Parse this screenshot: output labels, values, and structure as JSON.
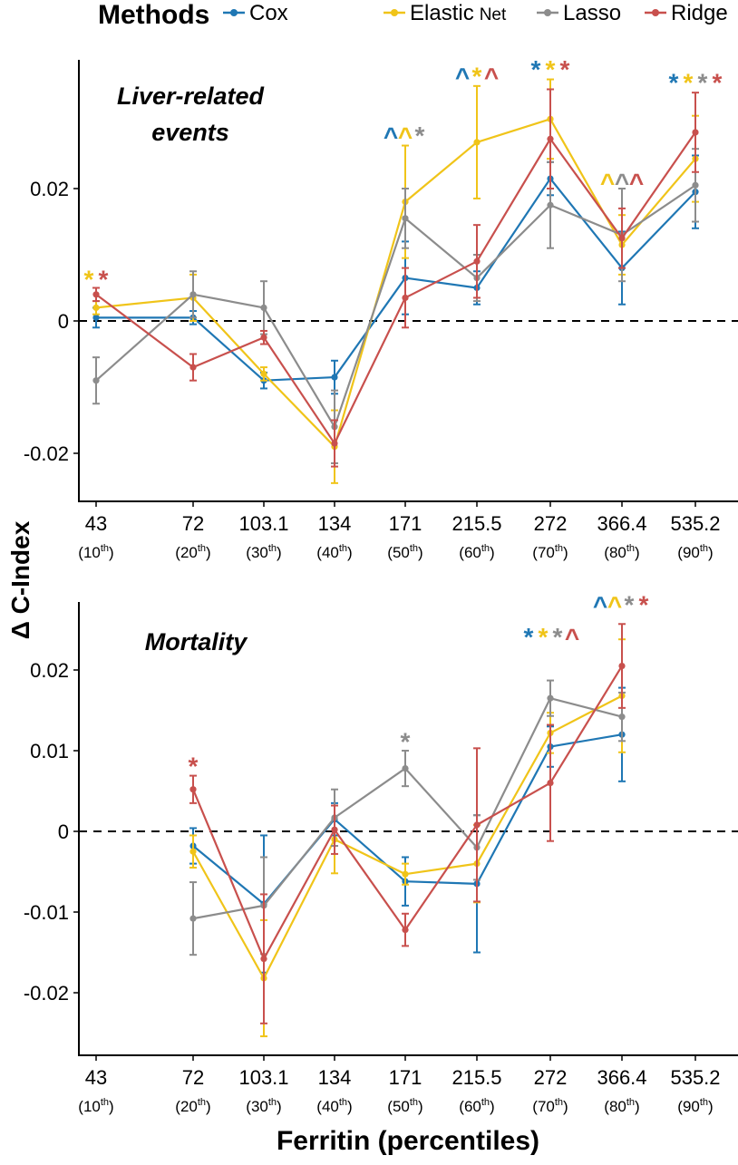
{
  "legend": {
    "title": "Methods",
    "items": [
      {
        "label": "Cox",
        "color": "#1f77b4"
      },
      {
        "label": "Elastic",
        "label2": "Net",
        "color": "#f0c419"
      },
      {
        "label": "Lasso",
        "color": "#8c8c8c"
      },
      {
        "label": "Ridge",
        "color": "#c8504d"
      }
    ]
  },
  "shared": {
    "ylabel": "Δ C-Index",
    "xlabel": "Ferritin (percentiles)"
  },
  "colors": {
    "Cox": "#1f77b4",
    "Elastic Net": "#f0c419",
    "Lasso": "#8c8c8c",
    "Ridge": "#c8504d"
  },
  "chart_data": [
    {
      "type": "line",
      "title": "Liver-related events",
      "title_lines": [
        "Liver-related",
        "events"
      ],
      "x_values": [
        "43",
        "72",
        "103.1",
        "134",
        "171",
        "215.5",
        "272",
        "366.4",
        "535.2"
      ],
      "x_percentiles": [
        "10",
        "20",
        "30",
        "40",
        "50",
        "60",
        "70",
        "80",
        "90"
      ],
      "yticks": [
        {
          "value": -0.02,
          "label": "-0.02"
        },
        {
          "value": 0,
          "label": "0"
        },
        {
          "value": 0.02,
          "label": "0.02"
        }
      ],
      "ylim": [
        -0.028,
        0.039
      ],
      "reference_line": 0,
      "series": [
        {
          "name": "Cox",
          "values": [
            0.0005,
            0.0005,
            -0.009,
            -0.0085,
            0.0065,
            0.005,
            0.0215,
            0.008,
            0.0195
          ],
          "err": [
            0.0015,
            0.001,
            0.0012,
            0.0025,
            0.0055,
            0.0025,
            0.0025,
            0.0055,
            0.0055
          ]
        },
        {
          "name": "Elastic Net",
          "values": [
            0.002,
            0.0035,
            -0.008,
            -0.019,
            0.018,
            0.027,
            0.0305,
            0.0115,
            0.0245
          ],
          "err": [
            0.001,
            0.0035,
            0.001,
            0.0055,
            0.0085,
            0.0085,
            0.006,
            0.0045,
            0.0065
          ]
        },
        {
          "name": "Lasso",
          "values": [
            -0.009,
            0.004,
            0.002,
            -0.016,
            0.0155,
            0.0065,
            0.0175,
            0.013,
            0.0205
          ],
          "err": [
            0.0035,
            0.0035,
            0.004,
            0.0055,
            0.0045,
            0.0035,
            0.0065,
            0.007,
            0.0055
          ]
        },
        {
          "name": "Ridge",
          "values": [
            0.004,
            -0.007,
            -0.0025,
            -0.0185,
            0.0035,
            0.009,
            0.0275,
            0.0125,
            0.0285
          ],
          "err": [
            0.001,
            0.002,
            0.001,
            0.0035,
            0.0045,
            0.0055,
            0.0075,
            0.0045,
            0.006
          ]
        }
      ],
      "annotations": [
        {
          "x_index": 0,
          "y": 0.0068,
          "marks": [
            {
              "sym": "*",
              "series": "Elastic Net"
            },
            {
              "sym": "*",
              "series": "Ridge"
            }
          ]
        },
        {
          "x_index": 4,
          "y": 0.0285,
          "marks": [
            {
              "sym": "^",
              "series": "Cox"
            },
            {
              "sym": "^",
              "series": "Elastic Net"
            },
            {
              "sym": "*",
              "series": "Lasso"
            }
          ]
        },
        {
          "x_index": 5,
          "y": 0.0375,
          "marks": [
            {
              "sym": "^",
              "series": "Cox"
            },
            {
              "sym": "*",
              "series": "Elastic Net"
            },
            {
              "sym": "^",
              "series": "Ridge"
            }
          ]
        },
        {
          "x_index": 6,
          "y": 0.0385,
          "marks": [
            {
              "sym": "*",
              "series": "Cox"
            },
            {
              "sym": "*",
              "series": "Elastic Net"
            },
            {
              "sym": "*",
              "series": "Ridge"
            }
          ]
        },
        {
          "x_index": 7,
          "y": 0.0215,
          "marks": [
            {
              "sym": "^",
              "series": "Elastic Net"
            },
            {
              "sym": "^",
              "series": "Lasso"
            },
            {
              "sym": "^",
              "series": "Ridge"
            }
          ]
        },
        {
          "x_index": 8,
          "y": 0.0365,
          "marks": [
            {
              "sym": "*",
              "series": "Cox"
            },
            {
              "sym": "*",
              "series": "Elastic Net"
            },
            {
              "sym": "*",
              "series": "Lasso"
            },
            {
              "sym": "*",
              "series": "Ridge"
            }
          ]
        }
      ]
    },
    {
      "type": "line",
      "title": "Mortality",
      "title_lines": [
        "Mortality"
      ],
      "x_values": [
        "43",
        "72",
        "103.1",
        "134",
        "171",
        "215.5",
        "272",
        "366.4",
        "535.2"
      ],
      "x_percentiles": [
        "10",
        "20",
        "30",
        "40",
        "50",
        "60",
        "70",
        "80",
        "90"
      ],
      "yticks": [
        {
          "value": -0.02,
          "label": "-0.02"
        },
        {
          "value": -0.01,
          "label": "-0.01"
        },
        {
          "value": 0,
          "label": "0"
        },
        {
          "value": 0.01,
          "label": "0.01"
        },
        {
          "value": 0.02,
          "label": "0.02"
        }
      ],
      "ylim": [
        -0.0268,
        0.0283
      ],
      "reference_line": 0,
      "series": [
        {
          "name": "Cox",
          "values": [
            null,
            -0.0018,
            -0.009,
            0.0015,
            -0.0062,
            -0.0065,
            0.0105,
            0.012,
            null
          ],
          "err": [
            null,
            0.0022,
            0.0085,
            0.002,
            0.003,
            0.0085,
            0.0025,
            0.0058,
            null
          ]
        },
        {
          "name": "Elastic Net",
          "values": [
            null,
            -0.0025,
            -0.0182,
            -0.001,
            -0.0053,
            -0.004,
            0.0122,
            0.0168,
            null
          ],
          "err": [
            null,
            0.002,
            0.0072,
            0.0042,
            0.0013,
            0.0048,
            0.0025,
            0.007,
            null
          ]
        },
        {
          "name": "Lasso",
          "values": [
            null,
            -0.0108,
            -0.0092,
            0.0017,
            0.0078,
            -0.002,
            0.0165,
            0.0142,
            null
          ],
          "err": [
            null,
            0.0045,
            0.006,
            0.0035,
            0.0022,
            0.004,
            0.0022,
            0.003,
            null
          ]
        },
        {
          "name": "Ridge",
          "values": [
            null,
            0.0052,
            -0.0158,
            0.0002,
            -0.0122,
            0.0008,
            0.006,
            0.0205,
            null
          ],
          "err": [
            null,
            0.0017,
            0.008,
            0.003,
            0.002,
            0.0095,
            0.0072,
            0.0052,
            null
          ]
        }
      ],
      "annotations": [
        {
          "x_index": 1,
          "y": 0.0085,
          "marks": [
            {
              "sym": "*",
              "series": "Ridge"
            }
          ]
        },
        {
          "x_index": 4,
          "y": 0.0115,
          "marks": [
            {
              "sym": "*",
              "series": "Lasso"
            }
          ]
        },
        {
          "x_index": 6,
          "y": 0.0245,
          "marks": [
            {
              "sym": "*",
              "series": "Cox"
            },
            {
              "sym": "*",
              "series": "Elastic Net"
            },
            {
              "sym": "*",
              "series": "Lasso"
            },
            {
              "sym": "^",
              "series": "Ridge"
            }
          ]
        },
        {
          "x_index": 7,
          "y": 0.0285,
          "marks": [
            {
              "sym": "^",
              "series": "Cox"
            },
            {
              "sym": "^",
              "series": "Elastic Net"
            },
            {
              "sym": "*",
              "series": "Lasso"
            },
            {
              "sym": "*",
              "series": "Ridge"
            }
          ]
        }
      ]
    }
  ]
}
